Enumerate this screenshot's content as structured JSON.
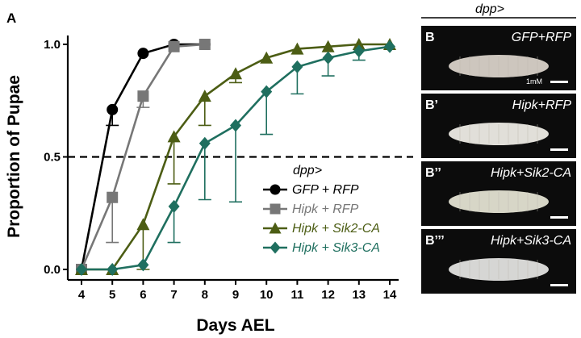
{
  "panel_a_label": "A",
  "chart_data": {
    "type": "line",
    "xlabel": "Days AEL",
    "ylabel": "Proportion of Pupae",
    "x": [
      4,
      5,
      6,
      7,
      8,
      9,
      10,
      11,
      12,
      13,
      14
    ],
    "xticks": [
      "4",
      "5",
      "6",
      "7",
      "8",
      "9",
      "10",
      "11",
      "12",
      "13",
      "14"
    ],
    "yticks": [
      "0.0",
      "0.5",
      "1.0"
    ],
    "ytick_values": [
      0,
      0.5,
      1
    ],
    "xlim": [
      4,
      14
    ],
    "ylim": [
      0,
      1
    ],
    "reference_line": 0.5,
    "legend_title": "dpp>",
    "legend_position": "lower-right",
    "series": [
      {
        "name": "GFP + RFP",
        "color": "#000000",
        "marker": "circle",
        "points": [
          {
            "x": 4,
            "y": 0.0
          },
          {
            "x": 5,
            "y": 0.71,
            "err": 0.07
          },
          {
            "x": 6,
            "y": 0.96
          },
          {
            "x": 7,
            "y": 1.0
          },
          {
            "x": 8,
            "y": 1.0
          }
        ]
      },
      {
        "name": "Hipk + RFP",
        "color": "#777777",
        "marker": "square",
        "points": [
          {
            "x": 4,
            "y": 0.0
          },
          {
            "x": 5,
            "y": 0.32,
            "err": 0.2
          },
          {
            "x": 6,
            "y": 0.77,
            "err": 0.05
          },
          {
            "x": 7,
            "y": 0.99
          },
          {
            "x": 8,
            "y": 1.0
          }
        ]
      },
      {
        "name": "Hipk + Sik2-CA",
        "color": "#4c5d14",
        "marker": "triangle",
        "points": [
          {
            "x": 4,
            "y": 0.0
          },
          {
            "x": 5,
            "y": 0.0
          },
          {
            "x": 6,
            "y": 0.2,
            "err": 0.2
          },
          {
            "x": 7,
            "y": 0.59,
            "err": 0.21
          },
          {
            "x": 8,
            "y": 0.77,
            "err": 0.13
          },
          {
            "x": 9,
            "y": 0.87,
            "err": 0.04
          },
          {
            "x": 10,
            "y": 0.94
          },
          {
            "x": 11,
            "y": 0.98
          },
          {
            "x": 12,
            "y": 0.99
          },
          {
            "x": 13,
            "y": 1.0
          },
          {
            "x": 14,
            "y": 1.0
          }
        ]
      },
      {
        "name": "Hipk + Sik3-CA",
        "color": "#1f6f5f",
        "marker": "diamond",
        "points": [
          {
            "x": 4,
            "y": 0.0
          },
          {
            "x": 5,
            "y": 0.0
          },
          {
            "x": 6,
            "y": 0.02
          },
          {
            "x": 7,
            "y": 0.28,
            "err": 0.16
          },
          {
            "x": 8,
            "y": 0.56,
            "err": 0.25
          },
          {
            "x": 9,
            "y": 0.64,
            "err": 0.34
          },
          {
            "x": 10,
            "y": 0.79,
            "err": 0.19
          },
          {
            "x": 11,
            "y": 0.9,
            "err": 0.12
          },
          {
            "x": 12,
            "y": 0.94,
            "err": 0.08
          },
          {
            "x": 13,
            "y": 0.97,
            "err": 0.04
          },
          {
            "x": 14,
            "y": 0.99
          }
        ]
      }
    ]
  },
  "photo_panel": {
    "header": "dpp>",
    "scale_bar_label": "1mM",
    "panels": [
      {
        "letter": "B",
        "label": "GFP+RFP",
        "tone": "#ddd5cc"
      },
      {
        "letter": "B’",
        "label": "Hipk+RFP",
        "tone": "#f2f0ea"
      },
      {
        "letter": "B’’",
        "label": "Hipk+Sik2-CA",
        "tone": "#e7e6d6"
      },
      {
        "letter": "B’’’",
        "label": "Hipk+Sik3-CA",
        "tone": "#e6e6e4"
      }
    ]
  }
}
